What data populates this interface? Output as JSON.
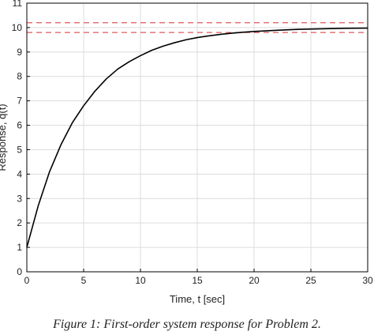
{
  "caption": "Figure 1: First-order system response for Problem 2.",
  "chart_data": {
    "type": "line",
    "xlabel": "Time, t [sec]",
    "ylabel": "Response, q(t)",
    "xlim": [
      0,
      30
    ],
    "ylim": [
      0,
      11
    ],
    "xticks": [
      0,
      5,
      10,
      15,
      20,
      25,
      30
    ],
    "yticks": [
      0,
      1,
      2,
      3,
      4,
      5,
      6,
      7,
      8,
      9,
      10,
      11
    ],
    "grid": true,
    "series": [
      {
        "color": "#000000",
        "style": "solid",
        "x": [
          0,
          1,
          2,
          3,
          4,
          5,
          6,
          7,
          8,
          9,
          10,
          11,
          12,
          13,
          14,
          15,
          16,
          17,
          18,
          19,
          20,
          22,
          24,
          26,
          28,
          30
        ],
        "y": [
          1.0,
          2.7,
          4.1,
          5.2,
          6.1,
          6.8,
          7.4,
          7.9,
          8.3,
          8.6,
          8.85,
          9.07,
          9.24,
          9.38,
          9.5,
          9.59,
          9.66,
          9.72,
          9.77,
          9.81,
          9.84,
          9.89,
          9.93,
          9.95,
          9.97,
          9.98
        ]
      }
    ],
    "reference_lines": [
      {
        "y": 10.2,
        "color": "#e05a5a",
        "style": "dashed"
      },
      {
        "y": 9.8,
        "color": "#e05a5a",
        "style": "dashed"
      }
    ]
  }
}
